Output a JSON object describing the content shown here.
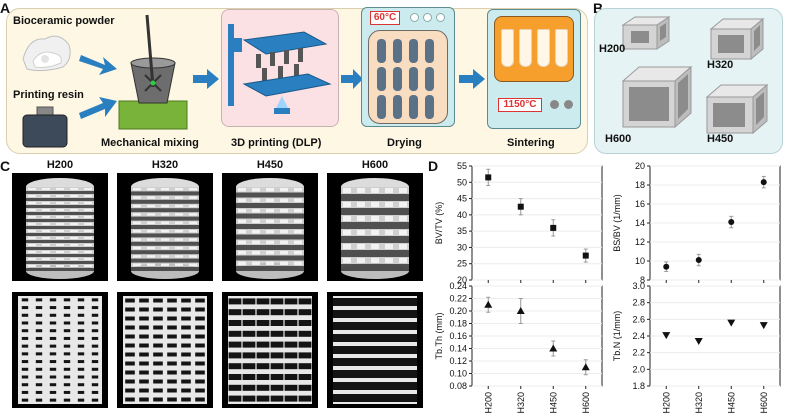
{
  "panel_letters": {
    "a": "A",
    "b": "B",
    "c": "C",
    "d": "D"
  },
  "panel_a": {
    "labels": {
      "powder": "Bioceramic powder",
      "resin": "Printing resin",
      "mixing": "Mechanical mixing",
      "printing": "3D printing (DLP)",
      "drying": "Drying",
      "sintering": "Sintering"
    },
    "drying_temp": "60°C",
    "sintering_temp": "1150°C",
    "colors": {
      "arrow": "#2a7fc0",
      "printer": "#2a7fc0",
      "mixer_base": "#7ab33a",
      "oven": "#ccebef",
      "furnace": "#f79f2c"
    }
  },
  "panel_b": {
    "labels": {
      "h200": "H200",
      "h320": "H320",
      "h600": "H600",
      "h450": "H450"
    }
  },
  "panel_c": {
    "headers": [
      "H200",
      "H320",
      "H450",
      "H600"
    ]
  },
  "chart_data": [
    {
      "type": "scatter",
      "categories": [
        "H200",
        "H320",
        "H450",
        "H600"
      ],
      "values": [
        51.5,
        42.5,
        36.0,
        27.5
      ],
      "errors": [
        2.5,
        2.5,
        2.5,
        2.0
      ],
      "marker": "square",
      "ylabel": "BV/TV (%)",
      "ylim": [
        20,
        55
      ],
      "yticks": [
        20,
        25,
        30,
        35,
        40,
        45,
        50,
        55
      ],
      "grid": true
    },
    {
      "type": "scatter",
      "categories": [
        "H200",
        "H320",
        "H450",
        "H600"
      ],
      "values": [
        9.4,
        10.1,
        14.1,
        18.3
      ],
      "errors": [
        0.5,
        0.6,
        0.6,
        0.6
      ],
      "marker": "circle",
      "ylabel": "BS/BV (1/mm)",
      "ylim": [
        8,
        20
      ],
      "yticks": [
        8,
        10,
        12,
        14,
        16,
        18,
        20
      ],
      "grid": true
    },
    {
      "type": "scatter",
      "categories": [
        "H200",
        "H320",
        "H450",
        "H600"
      ],
      "values": [
        0.21,
        0.2,
        0.14,
        0.11
      ],
      "errors": [
        0.012,
        0.02,
        0.012,
        0.012
      ],
      "marker": "triangle-up",
      "ylabel": "Tb.Th (mm)",
      "ylim": [
        0.08,
        0.24
      ],
      "yticks": [
        "0.08",
        "0.10",
        "0.12",
        "0.14",
        "0.16",
        "0.18",
        "0.20",
        "0.22",
        "0.24"
      ],
      "grid": true
    },
    {
      "type": "scatter",
      "categories": [
        "H200",
        "H320",
        "H450",
        "H600"
      ],
      "values": [
        2.41,
        2.34,
        2.56,
        2.53
      ],
      "errors": [
        0.0,
        0.0,
        0.0,
        0.0
      ],
      "marker": "triangle-down",
      "ylabel": "Tb.N (1/mm)",
      "ylim": [
        1.8,
        3.0
      ],
      "yticks": [
        "1.8",
        "2.0",
        "2.2",
        "2.4",
        "2.6",
        "2.8",
        "3.0"
      ],
      "grid": true
    }
  ]
}
